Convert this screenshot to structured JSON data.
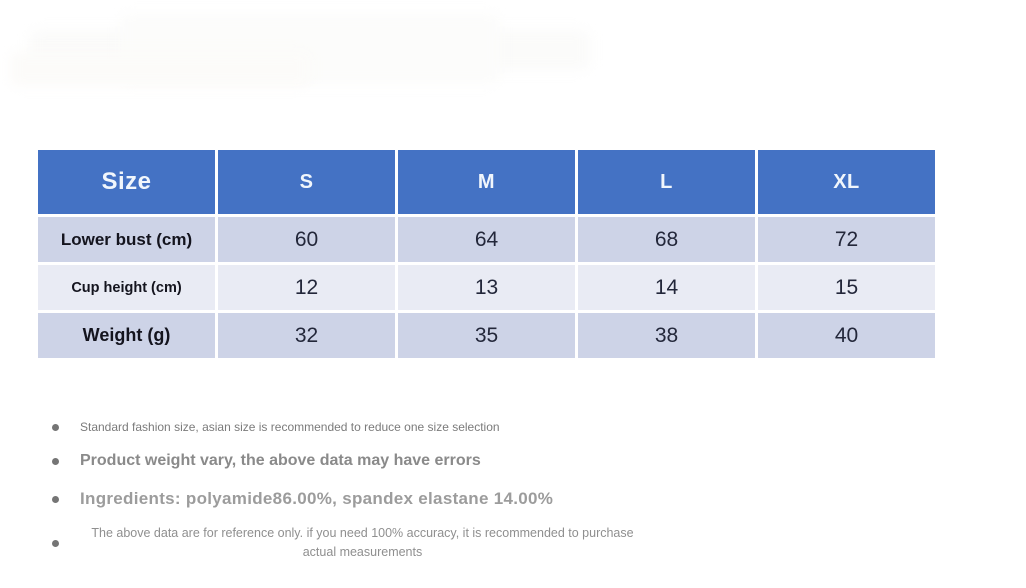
{
  "page": {
    "background": "#ffffff"
  },
  "colors": {
    "header_bg": "#4472C4",
    "header_text": "#F1F6FC",
    "row_band_dark": "#CDD3E7",
    "row_band_light": "#E9EBF4",
    "label_text": "#14141e",
    "value_text": "#23273a",
    "note_gray": "#8a8a8a"
  },
  "chart_data": {
    "type": "table",
    "title": "Size",
    "columns": [
      "Size",
      "S",
      "M",
      "L",
      "XL"
    ],
    "rows": [
      {
        "label": "Lower bust (cm)",
        "values": [
          "60",
          "64",
          "68",
          "72"
        ]
      },
      {
        "label": "Cup height (cm)",
        "values": [
          "12",
          "13",
          "14",
          "15"
        ]
      },
      {
        "label": "Weight (g)",
        "values": [
          "32",
          "35",
          "38",
          "40"
        ]
      }
    ],
    "layout_hints": {
      "banded_rows": true,
      "header_position": "top",
      "equal_column_widths": true
    }
  },
  "notes": [
    {
      "text": "Standard fashion size, asian size is recommended to reduce one size selection"
    },
    {
      "text": "Product weight vary, the above data may have errors"
    },
    {
      "text": "Ingredients: polyamide86.00%, spandex elastane 14.00%"
    },
    {
      "text": "The above data are for reference only. if you need 100% accuracy, it is recommended to purchase actual measurements"
    }
  ]
}
